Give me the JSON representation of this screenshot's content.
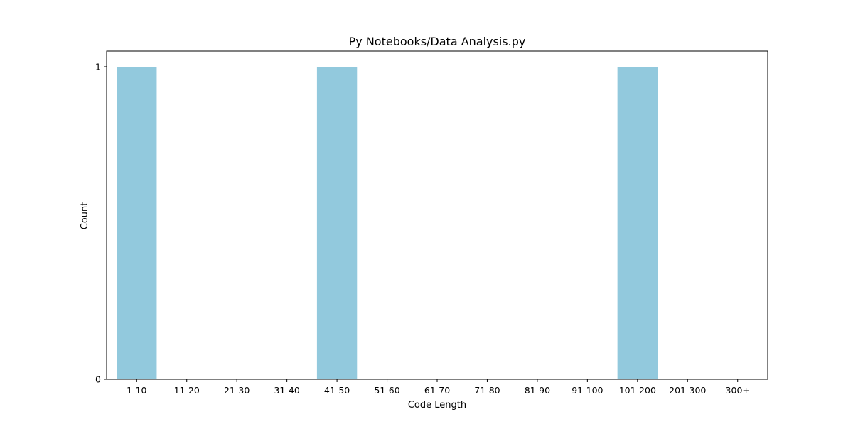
{
  "chart_data": {
    "type": "bar",
    "title": "Py Notebooks/Data Analysis.py",
    "xlabel": "Code Length",
    "ylabel": "Count",
    "categories": [
      "1-10",
      "11-20",
      "21-30",
      "31-40",
      "41-50",
      "51-60",
      "61-70",
      "71-80",
      "81-90",
      "91-100",
      "101-200",
      "201-300",
      "300+"
    ],
    "values": [
      1,
      0,
      0,
      0,
      1,
      0,
      0,
      0,
      0,
      0,
      1,
      0,
      0
    ],
    "ylim": [
      0,
      1
    ],
    "yticks": [
      "0",
      "1"
    ],
    "grid": false,
    "legend": "none",
    "bar_color": "#92c9dd",
    "axis_color": "#000000"
  }
}
